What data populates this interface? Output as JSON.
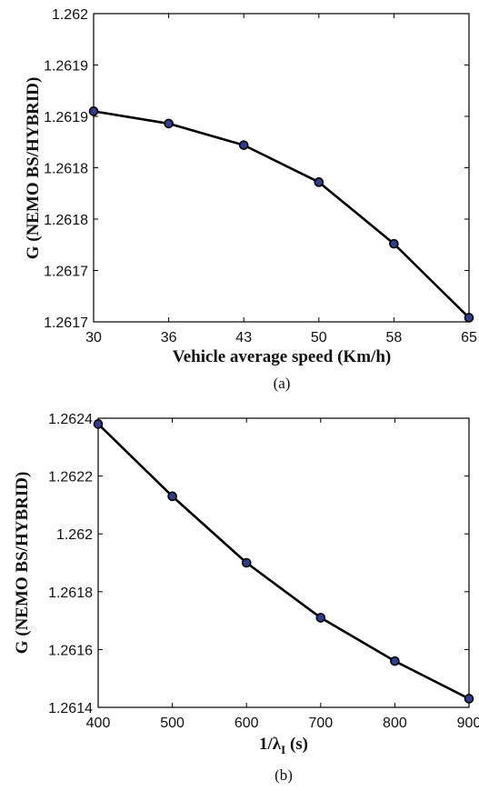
{
  "chart_data": [
    {
      "type": "line",
      "caption": "(a)",
      "xlabel": "Vehicle average speed (Km/h)",
      "ylabel": "G (NEMO BS/HYBRID)",
      "x_tick_labels": [
        "30",
        "36",
        "43",
        "50",
        "58",
        "65"
      ],
      "y_tick_labels": [
        "1.2617",
        "1.2617",
        "1.2618",
        "1.2618",
        "1.2619",
        "1.2619",
        "1.262"
      ],
      "y_ticks": [
        1.2617,
        1.26175,
        1.2618,
        1.26185,
        1.2619,
        1.26195,
        1.262
      ],
      "ylim": [
        1.2617,
        1.262
      ],
      "grid": false,
      "marker_color": "#2e3e8c",
      "line_color": "#000000",
      "series": [
        {
          "x": [
            "30",
            "36",
            "43",
            "50",
            "58",
            "65"
          ],
          "y": [
            1.261905,
            1.261893,
            1.261872,
            1.261836,
            1.261776,
            1.261704
          ]
        }
      ]
    },
    {
      "type": "line",
      "caption": "(b)",
      "xlabel_main": "1/λ",
      "xlabel_sub": "I",
      "xlabel_unit": " (s)",
      "ylabel": "G (NEMO BS/HYBRID)",
      "x_tick_labels": [
        "400",
        "500",
        "600",
        "700",
        "800",
        "900"
      ],
      "x_ticks": [
        400,
        500,
        600,
        700,
        800,
        900
      ],
      "xlim": [
        400,
        900
      ],
      "y_tick_labels": [
        "1.2614",
        "1.2616",
        "1.2618",
        "1.262",
        "1.2622",
        "1.2624"
      ],
      "y_ticks": [
        1.2614,
        1.2616,
        1.2618,
        1.262,
        1.2622,
        1.2624
      ],
      "ylim": [
        1.2614,
        1.2624
      ],
      "grid": false,
      "marker_color": "#2e3e8c",
      "line_color": "#000000",
      "series": [
        {
          "x": [
            400,
            500,
            600,
            700,
            800,
            900
          ],
          "y": [
            1.26238,
            1.26213,
            1.2619,
            1.26171,
            1.26156,
            1.26143
          ]
        }
      ]
    }
  ]
}
